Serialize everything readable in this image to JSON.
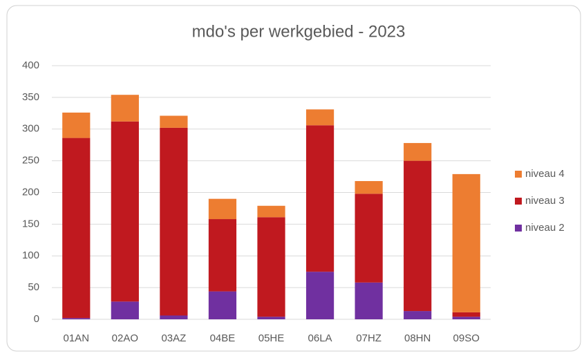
{
  "chart_data": {
    "type": "stacked_bar",
    "title": "mdo's per werkgebied - 2023",
    "categories": [
      "01AN",
      "02AO",
      "03AZ",
      "04BE",
      "05HE",
      "06LA",
      "07HZ",
      "08HN",
      "09SO"
    ],
    "series": [
      {
        "name": "niveau 2",
        "color": "#7030a0",
        "values": [
          2,
          28,
          6,
          44,
          4,
          75,
          58,
          13,
          4
        ]
      },
      {
        "name": "niveau 3",
        "color": "#c0191f",
        "values": [
          284,
          284,
          296,
          114,
          157,
          231,
          140,
          237,
          7
        ]
      },
      {
        "name": "niveau 4",
        "color": "#ed7d31",
        "values": [
          40,
          42,
          19,
          32,
          18,
          25,
          20,
          28,
          218
        ]
      }
    ],
    "ylim": [
      0,
      400
    ],
    "yticks": [
      0,
      50,
      100,
      150,
      200,
      250,
      300,
      350,
      400
    ],
    "grid": true,
    "legend": "right"
  }
}
